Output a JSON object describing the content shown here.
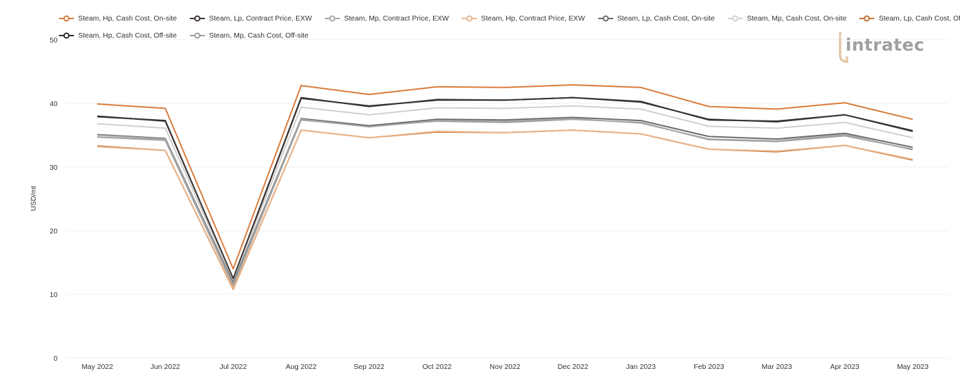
{
  "chart_data": {
    "type": "line",
    "title": "",
    "xlabel": "",
    "ylabel": "USD/mt",
    "ylim": [
      0,
      50
    ],
    "yticks": [
      0,
      10,
      20,
      30,
      40,
      50
    ],
    "grid": true,
    "legend_position": "top",
    "categories": [
      "May 2022",
      "Jun 2022",
      "Jul 2022",
      "Aug 2022",
      "Sep 2022",
      "Oct 2022",
      "Nov 2022",
      "Dec 2022",
      "Jan 2023",
      "Feb 2023",
      "Mar 2023",
      "Apr 2023",
      "May 2023"
    ],
    "series": [
      {
        "name": "Steam, Hp, Cash Cost, On-site",
        "color": "#d97b3a",
        "values": [
          39.9,
          39.2,
          14.0,
          42.8,
          41.4,
          42.6,
          42.5,
          42.9,
          42.5,
          39.5,
          39.1,
          40.1,
          37.5
        ]
      },
      {
        "name": "Steam, Lp, Contract Price, EXW",
        "color": "#3b3431",
        "values": [
          38.0,
          37.2,
          12.5,
          40.9,
          39.5,
          40.6,
          40.5,
          40.9,
          40.2,
          37.5,
          37.1,
          38.2,
          35.6
        ]
      },
      {
        "name": "Steam, Mp, Contract Price, EXW",
        "color": "#a6a6a6",
        "values": [
          35.0,
          34.4,
          11.5,
          37.5,
          36.3,
          37.3,
          37.2,
          37.6,
          36.9,
          34.4,
          34.1,
          35.1,
          32.7
        ]
      },
      {
        "name": "Steam, Hp, Contract Price, EXW",
        "color": "#e9b48a",
        "values": [
          33.2,
          32.6,
          10.9,
          35.8,
          34.6,
          35.6,
          35.4,
          35.8,
          35.2,
          32.8,
          32.5,
          33.4,
          31.2
        ]
      },
      {
        "name": "Steam, Lp, Cash Cost, On-site",
        "color": "#6e6a68",
        "values": [
          35.1,
          34.5,
          11.8,
          37.6,
          36.5,
          37.5,
          37.4,
          37.8,
          37.3,
          34.8,
          34.4,
          35.3,
          33.1
        ]
      },
      {
        "name": "Steam, Mp, Cash Cost, On-site",
        "color": "#cfcfcf",
        "values": [
          36.8,
          36.1,
          12.2,
          39.4,
          38.2,
          39.3,
          39.2,
          39.6,
          39.1,
          36.4,
          36.1,
          37.0,
          34.6
        ]
      },
      {
        "name": "Steam, Lp, Cash Cost, Off-site",
        "color": "#c8702f",
        "values": [
          33.3,
          32.6,
          10.8,
          35.8,
          34.6,
          35.5,
          35.4,
          35.8,
          35.2,
          32.8,
          32.4,
          33.4,
          31.1
        ]
      },
      {
        "name": "Steam, Hp, Cash Cost, Off-site",
        "color": "#2f2a28",
        "values": [
          37.9,
          37.3,
          12.4,
          40.8,
          39.6,
          40.5,
          40.5,
          40.9,
          40.3,
          37.4,
          37.2,
          38.2,
          35.7
        ]
      },
      {
        "name": "Steam, Mp, Cash Cost, Off-site",
        "color": "#9c9c9c",
        "values": [
          34.7,
          34.2,
          11.3,
          37.4,
          36.4,
          37.2,
          37.0,
          37.5,
          37.0,
          34.3,
          34.0,
          34.9,
          32.8
        ]
      }
    ]
  },
  "legend_rows": [
    [
      0,
      1,
      2,
      3,
      4,
      5,
      6
    ],
    [
      7,
      8
    ]
  ],
  "logo": {
    "text": "intratec",
    "color": "#a0a0a0",
    "accent": "#e6c7a8"
  }
}
